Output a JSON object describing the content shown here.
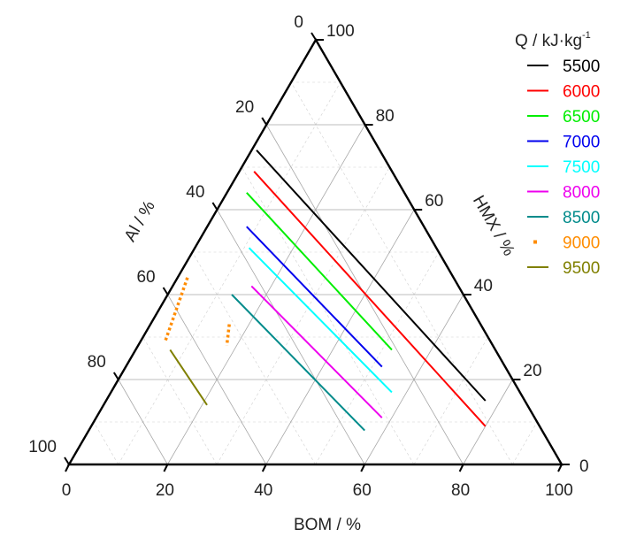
{
  "chart_data": {
    "type": "ternary-line",
    "axes": {
      "bottom": {
        "label": "BOM / %",
        "ticks": [
          "0",
          "20",
          "40",
          "60",
          "80",
          "100"
        ]
      },
      "left": {
        "label": "Al / %",
        "ticks": [
          "0",
          "20",
          "40",
          "60",
          "80",
          "100"
        ]
      },
      "right": {
        "label": "HMX / %",
        "ticks": [
          "0",
          "20",
          "40",
          "60",
          "80",
          "100"
        ]
      }
    },
    "grid": {
      "major": true,
      "minor": true
    },
    "legend": {
      "title": {
        "text": "Q / kJ·kg",
        "sup": "-1"
      },
      "placement": "right"
    },
    "series": [
      {
        "name": "5500",
        "color": "#000000",
        "style": "solid",
        "points": [
          {
            "hmx": 74,
            "bom": 1,
            "al": 25
          },
          {
            "hmx": 15,
            "bom": 77,
            "al": 8
          }
        ]
      },
      {
        "name": "6000",
        "color": "#ff0000",
        "style": "solid",
        "points": [
          {
            "hmx": 69,
            "bom": 3,
            "al": 28
          },
          {
            "hmx": 9,
            "bom": 80,
            "al": 11
          }
        ]
      },
      {
        "name": "6500",
        "color": "#00ee00",
        "style": "solid",
        "points": [
          {
            "hmx": 64,
            "bom": 4,
            "al": 32
          },
          {
            "hmx": 27,
            "bom": 52,
            "al": 21
          }
        ]
      },
      {
        "name": "7000",
        "color": "#0000ee",
        "style": "solid",
        "points": [
          {
            "hmx": 56,
            "bom": 8,
            "al": 36
          },
          {
            "hmx": 23,
            "bom": 52,
            "al": 25
          }
        ]
      },
      {
        "name": "7500",
        "color": "#00ffff",
        "style": "solid",
        "points": [
          {
            "hmx": 51,
            "bom": 11,
            "al": 38
          },
          {
            "hmx": 17,
            "bom": 57,
            "al": 26
          }
        ]
      },
      {
        "name": "8000",
        "color": "#ee00ee",
        "style": "solid",
        "points": [
          {
            "hmx": 42,
            "bom": 16,
            "al": 42
          },
          {
            "hmx": 11,
            "bom": 58,
            "al": 31
          }
        ]
      },
      {
        "name": "8500",
        "color": "#008b8b",
        "style": "solid",
        "points": [
          {
            "hmx": 40,
            "bom": 13,
            "al": 47
          },
          {
            "hmx": 8,
            "bom": 56,
            "al": 36
          }
        ]
      },
      {
        "name": "9000",
        "color": "#ff8c00",
        "style": "dotted",
        "segments": [
          [
            {
              "hmx": 44,
              "bom": 2,
              "al": 54
            },
            {
              "hmx": 29,
              "bom": 5,
              "al": 66
            }
          ],
          [
            {
              "hmx": 33,
              "bom": 16,
              "al": 51
            },
            {
              "hmx": 28,
              "bom": 18,
              "al": 54
            }
          ]
        ]
      },
      {
        "name": "9500",
        "color": "#808000",
        "style": "solid",
        "points": [
          {
            "hmx": 27,
            "bom": 7,
            "al": 66
          },
          {
            "hmx": 14,
            "bom": 21,
            "al": 65
          }
        ]
      }
    ]
  }
}
